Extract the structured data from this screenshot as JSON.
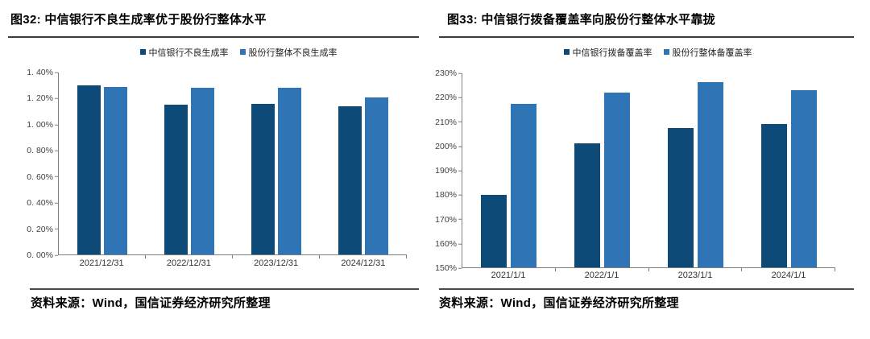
{
  "page": {
    "background": "#ffffff"
  },
  "chart_data": [
    {
      "figure_id": "图32",
      "title": "图32: 中信银行不良生成率优于股份行整体水平",
      "source": "资料来源：Wind，国信证券经济研究所整理",
      "type": "bar",
      "legend_position": "top",
      "grid": false,
      "categories": [
        "2021/12/31",
        "2022/12/31",
        "2023/12/31",
        "2024/12/31"
      ],
      "series": [
        {
          "name": "中信银行不良生成率",
          "color": "#0d4a78",
          "values": [
            1.3,
            1.15,
            1.16,
            1.14
          ]
        },
        {
          "name": "股份行整体不良生成率",
          "color": "#2f75b5",
          "values": [
            1.29,
            1.28,
            1.28,
            1.21
          ]
        }
      ],
      "ylim": [
        0,
        1.4
      ],
      "ytick_values": [
        0,
        0.2,
        0.4,
        0.6,
        0.8,
        1.0,
        1.2,
        1.4
      ],
      "ytick_labels": [
        "0. 00%",
        "0. 20%",
        "0. 40%",
        "0. 60%",
        "0. 80%",
        "1. 00%",
        "1. 20%",
        "1. 40%"
      ]
    },
    {
      "figure_id": "图33",
      "title": "图33: 中信银行拨备覆盖率向股份行整体水平靠拢",
      "source": "资料来源：Wind，国信证券经济研究所整理",
      "type": "bar",
      "legend_position": "top",
      "grid": false,
      "categories": [
        "2021/1/1",
        "2022/1/1",
        "2023/1/1",
        "2024/1/1"
      ],
      "series": [
        {
          "name": "中信银行拨备覆盖率",
          "color": "#0d4a78",
          "values": [
            180,
            201,
            207.5,
            209
          ]
        },
        {
          "name": "股份行整体备覆盖率",
          "color": "#2f75b5",
          "values": [
            217.5,
            222,
            226.5,
            223
          ]
        }
      ],
      "ylim": [
        150,
        230
      ],
      "ytick_values": [
        150,
        160,
        170,
        180,
        190,
        200,
        210,
        220,
        230
      ],
      "ytick_labels": [
        "150%",
        "160%",
        "170%",
        "180%",
        "190%",
        "200%",
        "210%",
        "220%",
        "230%"
      ]
    }
  ]
}
